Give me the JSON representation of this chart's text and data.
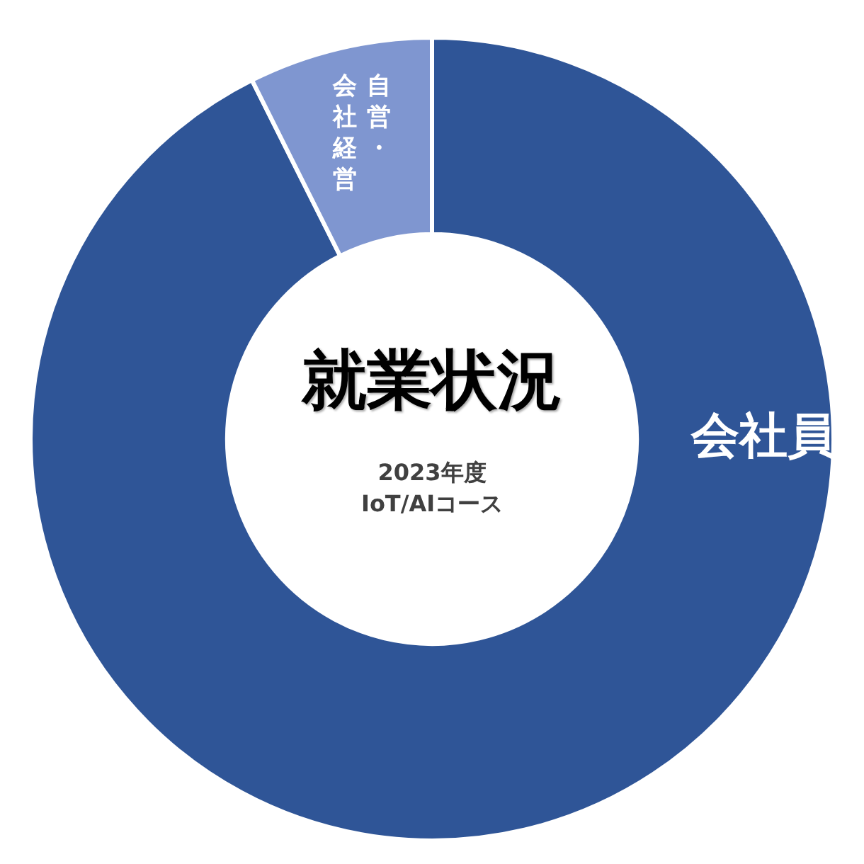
{
  "chart_data": {
    "type": "donut",
    "title": "就業状況",
    "subtitle": "2023年度\nIoT/AIコース",
    "categories": [
      "会社員",
      "自営・会社経営"
    ],
    "values": [
      92.6,
      7.4
    ],
    "colors": [
      "#2f5597",
      "#7f96d0"
    ],
    "legend": false
  }
}
